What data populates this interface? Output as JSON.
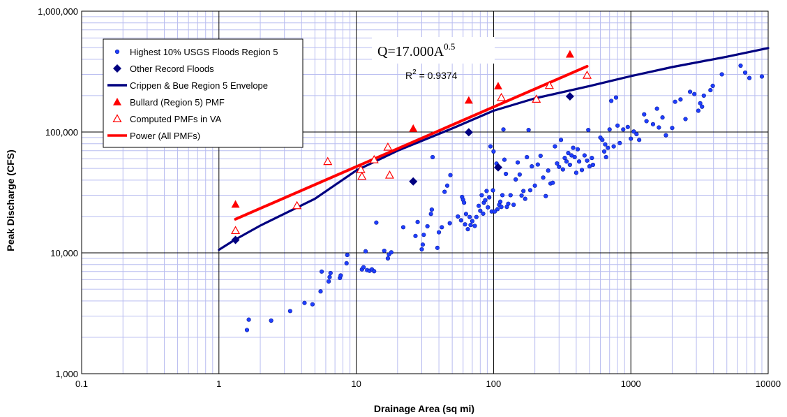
{
  "chart_data": {
    "type": "scatter",
    "xscale": "log",
    "yscale": "log",
    "xlim": [
      0.1,
      10000
    ],
    "ylim": [
      1000,
      1000000
    ],
    "xlabel": "Drainage Area (sq mi)",
    "ylabel": "Peak Discharge (CFS)",
    "x_ticks": [
      "0.1",
      "1",
      "10",
      "100",
      "1000",
      "10000"
    ],
    "y_ticks": [
      "1,000",
      "10,000",
      "100,000",
      "1,000,000"
    ],
    "grid": true,
    "legend_position": "top-left",
    "annotations": {
      "equation_base": "Q=17.000A",
      "equation_exp": "0.5",
      "r2_base": "R",
      "r2_exp": "2",
      "r2_value": " = 0.9374"
    },
    "series": [
      {
        "name": "Highest 10% USGS Floods Region 5",
        "kind": "scatter",
        "marker": "circle",
        "color": "#1f3fff",
        "points": [
          [
            1.6,
            2300
          ],
          [
            1.65,
            2800
          ],
          [
            2.4,
            2750
          ],
          [
            3.3,
            3300
          ],
          [
            4.2,
            3850
          ],
          [
            4.8,
            3750
          ],
          [
            5.5,
            4800
          ],
          [
            5.6,
            7000
          ],
          [
            6.3,
            5800
          ],
          [
            6.4,
            6300
          ],
          [
            6.5,
            6800
          ],
          [
            7.6,
            6200
          ],
          [
            7.7,
            6500
          ],
          [
            8.5,
            8200
          ],
          [
            8.6,
            9600
          ],
          [
            11,
            7300
          ],
          [
            11.3,
            7600
          ],
          [
            11.7,
            10300
          ],
          [
            12,
            7200
          ],
          [
            12.5,
            7100
          ],
          [
            13,
            7300
          ],
          [
            13.5,
            7050
          ],
          [
            14,
            17800
          ],
          [
            16,
            10400
          ],
          [
            17,
            9000
          ],
          [
            17.3,
            9700
          ],
          [
            18,
            10100
          ],
          [
            22,
            16300
          ],
          [
            27,
            13800
          ],
          [
            28,
            18000
          ],
          [
            30,
            10700
          ],
          [
            30.5,
            11700
          ],
          [
            31,
            14100
          ],
          [
            33,
            16600
          ],
          [
            35,
            21000
          ],
          [
            35.5,
            22800
          ],
          [
            36,
            62000
          ],
          [
            39,
            11000
          ],
          [
            40,
            14800
          ],
          [
            42,
            16300
          ],
          [
            44,
            32000
          ],
          [
            46,
            36000
          ],
          [
            48,
            17600
          ],
          [
            48.5,
            44000
          ],
          [
            55,
            20000
          ],
          [
            58,
            18600
          ],
          [
            59,
            29000
          ],
          [
            60,
            27500
          ],
          [
            61,
            26000
          ],
          [
            62,
            17200
          ],
          [
            63,
            21000
          ],
          [
            65,
            15700
          ],
          [
            67,
            19800
          ],
          [
            68,
            17000
          ],
          [
            70,
            18300
          ],
          [
            73,
            16700
          ],
          [
            75,
            19800
          ],
          [
            78,
            24500
          ],
          [
            80,
            22300
          ],
          [
            82,
            30000
          ],
          [
            84,
            21100
          ],
          [
            85,
            26000
          ],
          [
            87,
            27300
          ],
          [
            89,
            32500
          ],
          [
            91,
            23800
          ],
          [
            93,
            28800
          ],
          [
            95,
            76000
          ],
          [
            97,
            22000
          ],
          [
            99,
            32900
          ],
          [
            100,
            69000
          ],
          [
            102,
            22000
          ],
          [
            105,
            54800
          ],
          [
            107,
            23000
          ],
          [
            110,
            25000
          ],
          [
            112,
            26500
          ],
          [
            114,
            24000
          ],
          [
            116,
            30000
          ],
          [
            118,
            105000
          ],
          [
            120,
            59000
          ],
          [
            123,
            45000
          ],
          [
            125,
            24000
          ],
          [
            128,
            25500
          ],
          [
            133,
            30000
          ],
          [
            140,
            25000
          ],
          [
            145,
            40500
          ],
          [
            150,
            56000
          ],
          [
            155,
            44500
          ],
          [
            160,
            29800
          ],
          [
            165,
            32500
          ],
          [
            170,
            28000
          ],
          [
            175,
            62000
          ],
          [
            180,
            104000
          ],
          [
            185,
            33000
          ],
          [
            190,
            52000
          ],
          [
            200,
            36000
          ],
          [
            210,
            53800
          ],
          [
            220,
            63500
          ],
          [
            230,
            42000
          ],
          [
            240,
            29500
          ],
          [
            250,
            48000
          ],
          [
            260,
            37500
          ],
          [
            270,
            38000
          ],
          [
            280,
            76000
          ],
          [
            290,
            55000
          ],
          [
            300,
            51500
          ],
          [
            310,
            86000
          ],
          [
            320,
            49000
          ],
          [
            330,
            61000
          ],
          [
            340,
            57000
          ],
          [
            350,
            67000
          ],
          [
            360,
            53500
          ],
          [
            370,
            64000
          ],
          [
            380,
            74000
          ],
          [
            390,
            62000
          ],
          [
            400,
            46000
          ],
          [
            410,
            72000
          ],
          [
            420,
            57000
          ],
          [
            440,
            48500
          ],
          [
            460,
            64000
          ],
          [
            480,
            58000
          ],
          [
            490,
            104000
          ],
          [
            500,
            52000
          ],
          [
            520,
            61000
          ],
          [
            530,
            53500
          ],
          [
            600,
            90000
          ],
          [
            620,
            86000
          ],
          [
            640,
            69000
          ],
          [
            650,
            79000
          ],
          [
            660,
            62000
          ],
          [
            680,
            74000
          ],
          [
            700,
            105000
          ],
          [
            720,
            181000
          ],
          [
            750,
            76000
          ],
          [
            780,
            193000
          ],
          [
            800,
            113000
          ],
          [
            830,
            81000
          ],
          [
            880,
            105000
          ],
          [
            950,
            110000
          ],
          [
            1000,
            88000
          ],
          [
            1050,
            101000
          ],
          [
            1100,
            96000
          ],
          [
            1150,
            86000
          ],
          [
            1250,
            140000
          ],
          [
            1300,
            123000
          ],
          [
            1450,
            116000
          ],
          [
            1550,
            156000
          ],
          [
            1600,
            109000
          ],
          [
            1700,
            132000
          ],
          [
            1800,
            94000
          ],
          [
            2000,
            108000
          ],
          [
            2100,
            178000
          ],
          [
            2300,
            186000
          ],
          [
            2500,
            128000
          ],
          [
            2700,
            215000
          ],
          [
            2900,
            206000
          ],
          [
            3100,
            150000
          ],
          [
            3200,
            173000
          ],
          [
            3300,
            162000
          ],
          [
            3400,
            200000
          ],
          [
            3800,
            222000
          ],
          [
            3950,
            241000
          ],
          [
            4600,
            300000
          ],
          [
            6300,
            354000
          ],
          [
            6800,
            310000
          ],
          [
            7300,
            280000
          ],
          [
            9000,
            288000
          ]
        ]
      },
      {
        "name": "Other Record Floods",
        "kind": "scatter",
        "marker": "diamond",
        "color": "#000080",
        "points": [
          [
            1.32,
            12800
          ],
          [
            26,
            39000
          ],
          [
            66,
            99500
          ],
          [
            108,
            51000
          ],
          [
            360,
            197000
          ]
        ]
      },
      {
        "name": "Crippen & Bue Region 5 Envelope",
        "kind": "line",
        "color": "#000080",
        "points": [
          [
            1,
            10600
          ],
          [
            1.3,
            12800
          ],
          [
            2,
            16800
          ],
          [
            5,
            28000
          ],
          [
            10,
            48000
          ],
          [
            20,
            70000
          ],
          [
            50,
            107000
          ],
          [
            100,
            150000
          ],
          [
            200,
            190000
          ],
          [
            500,
            240000
          ],
          [
            1000,
            290000
          ],
          [
            2000,
            345000
          ],
          [
            5000,
            420000
          ],
          [
            10000,
            495000
          ]
        ]
      },
      {
        "name": "Bullard (Region 5) PMF",
        "kind": "scatter",
        "marker": "triangle",
        "color": "#ff0000",
        "points": [
          [
            1.32,
            25200
          ],
          [
            26,
            107000
          ],
          [
            66,
            183000
          ],
          [
            108,
            240000
          ],
          [
            360,
            440000
          ]
        ]
      },
      {
        "name": "Computed PMFs in VA",
        "kind": "scatter",
        "marker": "triangle-open",
        "color": "#ff0000",
        "points": [
          [
            1.32,
            15300
          ],
          [
            3.7,
            24600
          ],
          [
            6.2,
            57000
          ],
          [
            10.8,
            49000
          ],
          [
            11,
            43000
          ],
          [
            13.5,
            59000
          ],
          [
            17,
            75000
          ],
          [
            17.5,
            44000
          ],
          [
            114,
            193000
          ],
          [
            205,
            187000
          ],
          [
            255,
            243000
          ],
          [
            480,
            295000
          ]
        ]
      },
      {
        "name": "Power (All PMFs)",
        "kind": "line",
        "color": "#ff0000",
        "points": [
          [
            1.32,
            19000
          ],
          [
            480,
            350000
          ]
        ]
      }
    ]
  }
}
